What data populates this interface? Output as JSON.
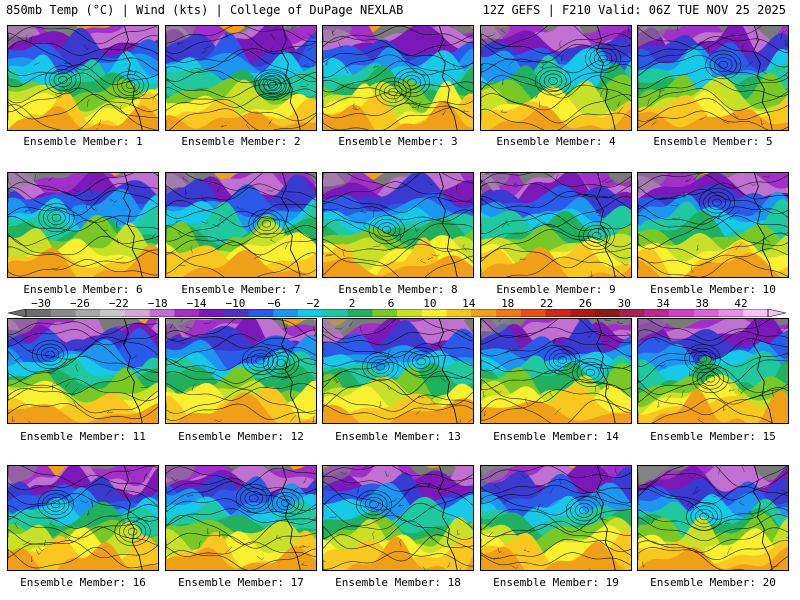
{
  "header": {
    "left_title": "850mb Temp (°C) | Wind (kts) | College of DuPage NEXLAB",
    "right_title": "12Z GEFS | F210 Valid: 06Z TUE NOV 25 2025"
  },
  "members": [
    {
      "label": "Ensemble Member: 1"
    },
    {
      "label": "Ensemble Member: 2"
    },
    {
      "label": "Ensemble Member: 3"
    },
    {
      "label": "Ensemble Member: 4"
    },
    {
      "label": "Ensemble Member: 5"
    },
    {
      "label": "Ensemble Member: 6"
    },
    {
      "label": "Ensemble Member: 7"
    },
    {
      "label": "Ensemble Member: 8"
    },
    {
      "label": "Ensemble Member: 9"
    },
    {
      "label": "Ensemble Member: 10"
    },
    {
      "label": "Ensemble Member: 11"
    },
    {
      "label": "Ensemble Member: 12"
    },
    {
      "label": "Ensemble Member: 13"
    },
    {
      "label": "Ensemble Member: 14"
    },
    {
      "label": "Ensemble Member: 15"
    },
    {
      "label": "Ensemble Member: 16"
    },
    {
      "label": "Ensemble Member: 17"
    },
    {
      "label": "Ensemble Member: 18"
    },
    {
      "label": "Ensemble Member: 19"
    },
    {
      "label": "Ensemble Member: 20"
    }
  ],
  "colorbar": {
    "ticks": [
      "−30",
      "−26",
      "−22",
      "−18",
      "−14",
      "−10",
      "−6",
      "−2",
      "2",
      "6",
      "10",
      "14",
      "18",
      "22",
      "26",
      "30",
      "34",
      "38",
      "42"
    ],
    "colors": [
      "#6e6e6e",
      "#8a8a8a",
      "#a8a8a8",
      "#c8c8c8",
      "#d4a8d4",
      "#c070d0",
      "#a030c8",
      "#7a18b8",
      "#4c30c8",
      "#2c5ae8",
      "#1c96f0",
      "#18c8e8",
      "#20c8a0",
      "#20b060",
      "#78c828",
      "#c8e028",
      "#f8f030",
      "#f8c820",
      "#f0a018",
      "#f07818",
      "#e85018",
      "#d02818",
      "#b01818",
      "#901818",
      "#a82050",
      "#c02890",
      "#d040c0",
      "#e060d8",
      "#f088e8",
      "#f8c0f8"
    ]
  }
}
